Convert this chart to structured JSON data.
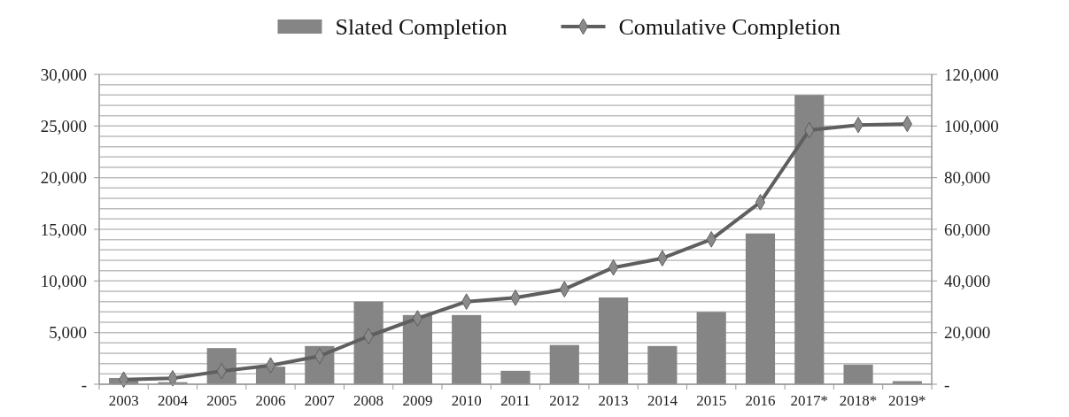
{
  "chart_data": {
    "type": "bar",
    "categories": [
      "2003",
      "2004",
      "2005",
      "2006",
      "2007",
      "2008",
      "2009",
      "2010",
      "2011",
      "2012",
      "2013",
      "2014",
      "2015",
      "2016",
      "2017*",
      "2018*",
      "2019*"
    ],
    "series": [
      {
        "name": "Slated Completion",
        "color": "#858585",
        "values": [
          600,
          200,
          3500,
          1700,
          3700,
          8000,
          6700,
          6700,
          1300,
          3800,
          8400,
          3700,
          7000,
          14600,
          28000,
          1900,
          300
        ]
      },
      {
        "name": "Comulative Completion",
        "type": "line",
        "axis": "y2",
        "color": "#5f5f5f",
        "marker": "diamond",
        "values": [
          1800,
          2300,
          5100,
          7300,
          10900,
          18600,
          25500,
          32000,
          33500,
          36800,
          45200,
          48800,
          56100,
          70500,
          98400,
          100400,
          100800
        ]
      }
    ],
    "ylim": [
      0,
      30000
    ],
    "yticks": [
      {
        "value": 0,
        "label": "-"
      },
      {
        "value": 5000,
        "label": "5,000"
      },
      {
        "value": 10000,
        "label": "10,000"
      },
      {
        "value": 15000,
        "label": "15,000"
      },
      {
        "value": 20000,
        "label": "20,000"
      },
      {
        "value": 25000,
        "label": "25,000"
      },
      {
        "value": 30000,
        "label": "30,000"
      }
    ],
    "y2lim": [
      0,
      120000
    ],
    "y2ticks": [
      {
        "value": 0,
        "label": "-"
      },
      {
        "value": 20000,
        "label": "20,000"
      },
      {
        "value": 40000,
        "label": "40,000"
      },
      {
        "value": 60000,
        "label": "60,000"
      },
      {
        "value": 80000,
        "label": "80,000"
      },
      {
        "value": 100000,
        "label": "100,000"
      },
      {
        "value": 120000,
        "label": "120,000"
      }
    ],
    "grid": "y",
    "legend": "top"
  }
}
